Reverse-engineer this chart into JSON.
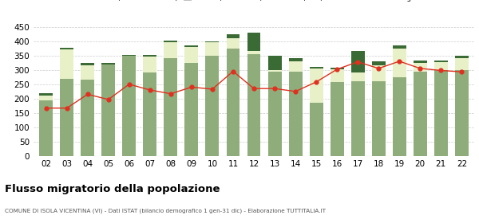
{
  "years": [
    "02",
    "03",
    "04",
    "05",
    "06",
    "07",
    "08",
    "09",
    "10",
    "11",
    "12",
    "13",
    "14",
    "15",
    "16",
    "17",
    "18",
    "19",
    "20",
    "21",
    "22"
  ],
  "iscritti_altri_comuni": [
    195,
    270,
    265,
    318,
    348,
    290,
    340,
    325,
    350,
    375,
    355,
    295,
    295,
    185,
    258,
    260,
    260,
    275,
    295,
    298,
    300
  ],
  "iscritti_estero": [
    15,
    100,
    50,
    0,
    0,
    55,
    55,
    55,
    45,
    35,
    10,
    5,
    35,
    120,
    45,
    30,
    55,
    100,
    30,
    30,
    40
  ],
  "iscritti_altri": [
    10,
    8,
    10,
    5,
    5,
    8,
    8,
    5,
    5,
    15,
    65,
    50,
    10,
    5,
    5,
    75,
    15,
    10,
    8,
    5,
    8
  ],
  "cancellati": [
    167,
    167,
    215,
    197,
    250,
    230,
    217,
    240,
    233,
    295,
    235,
    235,
    225,
    258,
    302,
    328,
    305,
    330,
    305,
    298,
    293
  ],
  "color_altri_comuni": "#8fad7a",
  "color_estero": "#e8f0c8",
  "color_altri": "#3a6b35",
  "color_cancellati": "#e03020",
  "title": "Flusso migratorio della popolazione",
  "subtitle": "COMUNE DI ISOLA VICENTINA (VI) - Dati ISTAT (bilancio demografico 1 gen-31 dic) - Elaborazione TUTTITALIA.IT",
  "ylim": [
    0,
    450
  ],
  "yticks": [
    0,
    50,
    100,
    150,
    200,
    250,
    300,
    350,
    400,
    450
  ],
  "bar_width": 0.65,
  "background_color": "#ffffff",
  "grid_color": "#cccccc"
}
